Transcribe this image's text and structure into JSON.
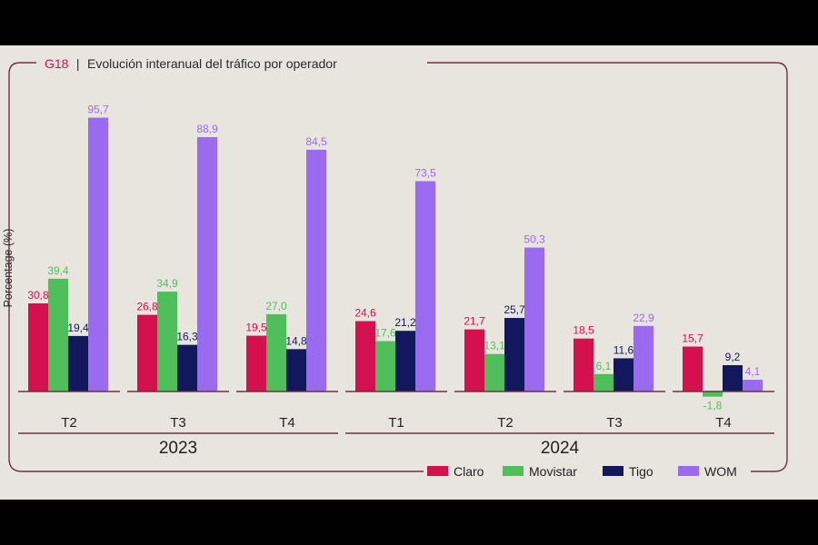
{
  "chart_data": {
    "type": "bar",
    "title_code": "G18",
    "title_sep": "|",
    "title": "Evolución interanual del tráfico por operador",
    "ylabel": "Porcentage (%)",
    "xlabel": "",
    "ylim": [
      -5,
      100
    ],
    "grid": false,
    "legend_position": "bottom-right",
    "categories": [
      "T2",
      "T3",
      "T4",
      "T1",
      "T2",
      "T3",
      "T4"
    ],
    "groups": [
      {
        "label": "2023",
        "categories": [
          "T2",
          "T3",
          "T4"
        ]
      },
      {
        "label": "2024",
        "categories": [
          "T1",
          "T2",
          "T3",
          "T4"
        ]
      }
    ],
    "series": [
      {
        "name": "Claro",
        "color": "#d5104f",
        "values": [
          30.8,
          26.8,
          19.5,
          24.6,
          21.7,
          18.5,
          15.7
        ],
        "labels": [
          "30,8",
          "26,8",
          "19,5",
          "24,6",
          "21,7",
          "18,5",
          "15,7"
        ]
      },
      {
        "name": "Movistar",
        "color": "#4fbf5c",
        "values": [
          39.4,
          34.9,
          27.0,
          17.6,
          13.1,
          6.1,
          -1.8
        ],
        "labels": [
          "39,4",
          "34,9",
          "27,0",
          "17,6",
          "13,1",
          "6,1",
          "-1,8"
        ]
      },
      {
        "name": "Tigo",
        "color": "#13185e",
        "values": [
          19.4,
          16.3,
          14.8,
          21.2,
          25.7,
          11.6,
          9.2
        ],
        "labels": [
          "19,4",
          "16,3",
          "14,8",
          "21,2",
          "25,7",
          "11,6",
          "9,2"
        ]
      },
      {
        "name": "WOM",
        "color": "#9a6bf0",
        "values": [
          95.7,
          88.9,
          84.5,
          73.5,
          50.3,
          22.9,
          4.1
        ],
        "labels": [
          "95,7",
          "88,9",
          "84,5",
          "73,5",
          "50,3",
          "22,9",
          "4,1"
        ]
      }
    ]
  },
  "colors": {
    "frame": "#6b3340",
    "title_code": "#d5104f",
    "axis": "#6b3340",
    "background": "#e8e5df"
  }
}
